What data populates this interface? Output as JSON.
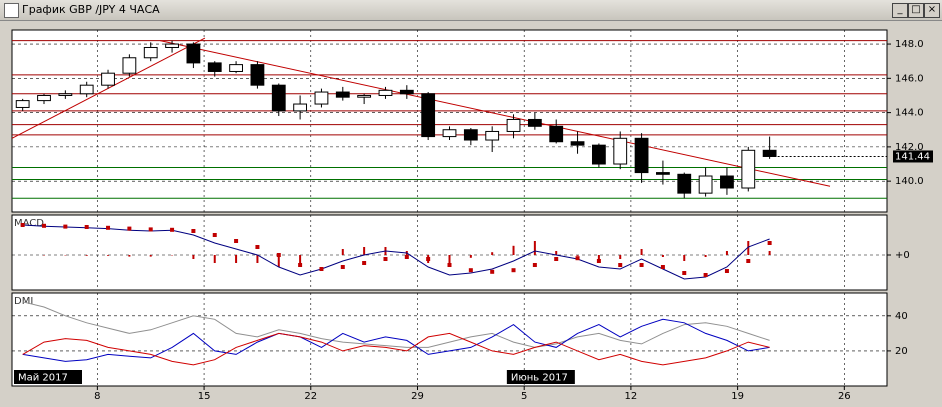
{
  "window": {
    "title": "График GBP /JPY  4 ЧАСА"
  },
  "month_labels": [
    "Май 2017",
    "Июнь 2017"
  ],
  "chart_data": [
    {
      "type": "candlestick",
      "categories": [
        null,
        null,
        null,
        null,
        "8",
        null,
        null,
        null,
        null,
        "15",
        null,
        null,
        null,
        null,
        "22",
        null,
        null,
        null,
        null,
        "29",
        null,
        null,
        null,
        null,
        "5",
        null,
        null,
        null,
        null,
        "12",
        null,
        null,
        null,
        null,
        "19",
        null,
        null,
        null,
        null,
        "26"
      ],
      "candles": [
        [
          144.3,
          144.8,
          144.1,
          144.7
        ],
        [
          144.7,
          145.1,
          144.5,
          145.0
        ],
        [
          145.0,
          145.3,
          144.8,
          145.1
        ],
        [
          145.1,
          145.8,
          144.9,
          145.6
        ],
        [
          145.6,
          146.5,
          145.4,
          146.3
        ],
        [
          146.3,
          147.4,
          146.1,
          147.2
        ],
        [
          147.2,
          148.1,
          147.0,
          147.8
        ],
        [
          147.8,
          148.2,
          147.5,
          148.0
        ],
        [
          148.0,
          148.1,
          146.6,
          146.9
        ],
        [
          146.9,
          147.0,
          146.1,
          146.4
        ],
        [
          146.4,
          147.0,
          146.3,
          146.8
        ],
        [
          146.8,
          147.0,
          145.4,
          145.6
        ],
        [
          145.6,
          145.7,
          143.8,
          144.1
        ],
        [
          144.1,
          145.0,
          143.6,
          144.5
        ],
        [
          144.5,
          145.4,
          144.3,
          145.2
        ],
        [
          145.2,
          145.5,
          144.7,
          144.9
        ],
        [
          144.9,
          145.1,
          144.5,
          145.0
        ],
        [
          145.0,
          145.5,
          144.8,
          145.3
        ],
        [
          145.3,
          145.6,
          144.8,
          145.1
        ],
        [
          145.1,
          145.2,
          142.4,
          142.6
        ],
        [
          142.6,
          143.2,
          142.4,
          143.0
        ],
        [
          143.0,
          143.1,
          142.1,
          142.4
        ],
        [
          142.4,
          143.2,
          141.7,
          142.9
        ],
        [
          142.9,
          143.9,
          142.5,
          143.6
        ],
        [
          143.6,
          144.0,
          143.0,
          143.2
        ],
        [
          143.2,
          143.6,
          142.2,
          142.3
        ],
        [
          142.3,
          142.9,
          141.6,
          142.1
        ],
        [
          142.1,
          142.2,
          140.8,
          141.0
        ],
        [
          141.0,
          142.9,
          140.7,
          142.5
        ],
        [
          142.5,
          142.8,
          139.9,
          140.5
        ],
        [
          140.5,
          141.2,
          139.8,
          140.4
        ],
        [
          140.4,
          140.5,
          139.0,
          139.3
        ],
        [
          139.3,
          140.8,
          139.1,
          140.3
        ],
        [
          140.3,
          140.8,
          139.2,
          139.6
        ],
        [
          139.6,
          142.0,
          139.4,
          141.8
        ],
        [
          141.8,
          142.6,
          141.3,
          141.44
        ],
        null,
        null,
        null,
        null
      ],
      "ylim": [
        138.2,
        148.82
      ],
      "yticks": [
        {
          "value": 140,
          "label": "140.0"
        },
        {
          "value": 142,
          "label": "142.0"
        },
        {
          "value": 144,
          "label": "144.0"
        },
        {
          "value": 146,
          "label": "146.0"
        },
        {
          "value": 148,
          "label": "148.0"
        }
      ],
      "grid": true,
      "levels": [
        {
          "value": 148.2,
          "color": "#a00000"
        },
        {
          "value": 146.2,
          "color": "#a00000"
        },
        {
          "value": 145.1,
          "color": "#a00000"
        },
        {
          "value": 144.1,
          "color": "#a00000"
        },
        {
          "value": 143.3,
          "color": "#a00000"
        },
        {
          "value": 142.7,
          "color": "#a00000"
        },
        {
          "value": 140.8,
          "color": "#007000"
        },
        {
          "value": 140.1,
          "color": "#007000"
        },
        {
          "value": 139.0,
          "color": "#007000"
        }
      ],
      "trendlines": [
        {
          "x": [
            -0.5,
            8.54
          ],
          "y": [
            142.5,
            148.35
          ],
          "color": "#c00000"
        },
        {
          "x": [
            6.44,
            37.83
          ],
          "y": [
            148.2,
            139.7
          ],
          "color": "#c00000"
        }
      ]
    },
    {
      "type": "line",
      "title": "MACD",
      "ylim": [
        -0.875,
        1.0
      ],
      "yticks": [
        {
          "value": 0,
          "label": "+0"
        }
      ],
      "series": [
        {
          "style": "histogram",
          "color": "#c00000",
          "values": [
            0.0,
            -0.01,
            -0.01,
            -0.02,
            -0.02,
            -0.04,
            -0.04,
            -0.01,
            -0.1,
            -0.2,
            -0.2,
            -0.2,
            -0.3,
            -0.25,
            0.0,
            0.15,
            0.2,
            0.2,
            0.1,
            -0.2,
            -0.25,
            -0.07,
            0.07,
            0.23,
            0.35,
            0.1,
            -0.02,
            -0.15,
            -0.1,
            0.15,
            -0.05,
            -0.15,
            -0.05,
            0.1,
            0.35,
            0.1
          ]
        },
        {
          "style": "line",
          "color": "#000080",
          "values": [
            0.75,
            0.72,
            0.7,
            0.68,
            0.66,
            0.62,
            0.6,
            0.62,
            0.5,
            0.3,
            0.15,
            0.0,
            -0.3,
            -0.5,
            -0.35,
            -0.15,
            0.0,
            0.1,
            0.05,
            -0.3,
            -0.5,
            -0.45,
            -0.35,
            -0.15,
            0.1,
            0.0,
            -0.1,
            -0.3,
            -0.35,
            -0.1,
            -0.35,
            -0.6,
            -0.55,
            -0.3,
            0.2,
            0.4
          ]
        },
        {
          "style": "dots",
          "color": "#c00000",
          "values": [
            0.75,
            0.73,
            0.71,
            0.7,
            0.68,
            0.66,
            0.64,
            0.63,
            0.6,
            0.5,
            0.35,
            0.2,
            0.0,
            -0.25,
            -0.35,
            -0.3,
            -0.2,
            -0.1,
            -0.05,
            -0.1,
            -0.25,
            -0.38,
            -0.42,
            -0.38,
            -0.25,
            -0.1,
            -0.08,
            -0.15,
            -0.25,
            -0.25,
            -0.3,
            -0.45,
            -0.5,
            -0.4,
            -0.15,
            0.3
          ]
        }
      ]
    },
    {
      "type": "line",
      "title": "DMI",
      "ylim": [
        0,
        53
      ],
      "yticks": [
        20,
        40
      ],
      "series": [
        {
          "style": "line",
          "color": "#909090",
          "values": [
            48,
            45,
            40,
            36,
            33,
            30,
            32,
            36,
            40,
            38,
            30,
            28,
            32,
            30,
            27,
            25,
            24,
            23,
            22,
            22,
            25,
            28,
            30,
            25,
            22,
            24,
            28,
            30,
            26,
            24,
            30,
            35,
            36,
            34,
            30,
            26
          ]
        },
        {
          "style": "line",
          "color": "#0000c0",
          "values": [
            18,
            16,
            14,
            15,
            18,
            17,
            16,
            22,
            30,
            20,
            18,
            25,
            30,
            28,
            22,
            30,
            25,
            28,
            26,
            18,
            20,
            22,
            28,
            35,
            25,
            22,
            30,
            35,
            28,
            34,
            38,
            36,
            30,
            26,
            20,
            22
          ]
        },
        {
          "style": "line",
          "color": "#d00000",
          "values": [
            18,
            25,
            27,
            26,
            22,
            20,
            18,
            14,
            12,
            15,
            22,
            26,
            30,
            28,
            25,
            20,
            23,
            22,
            20,
            28,
            30,
            25,
            20,
            18,
            22,
            25,
            20,
            15,
            18,
            14,
            12,
            14,
            16,
            20,
            25,
            22
          ]
        }
      ]
    }
  ]
}
